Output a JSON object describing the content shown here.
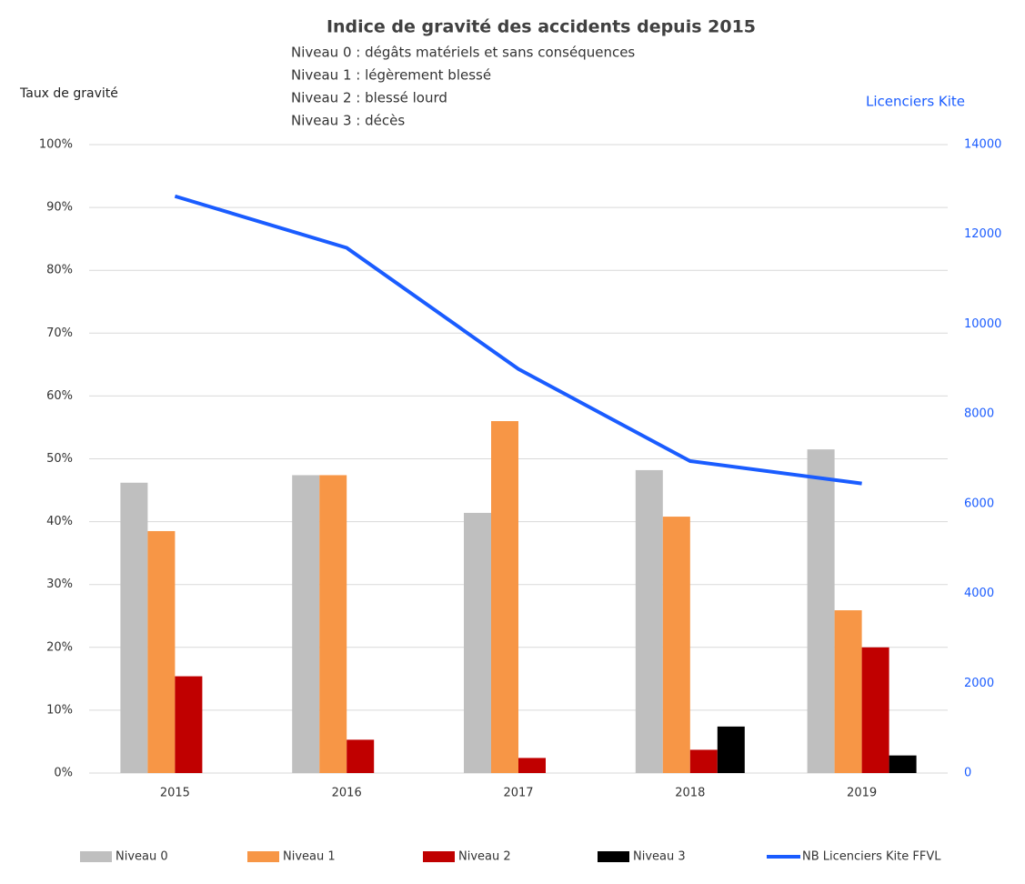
{
  "chart_data": {
    "type": "bar",
    "title": "Indice de gravité des accidents depuis 2015",
    "notes": [
      "Niveau 0 : dégâts matériels et sans conséquences",
      "Niveau 1 : légèrement blessé",
      "Niveau 2 : blessé lourd",
      "Niveau 3 : décès"
    ],
    "y_label": "Taux de gravité",
    "y2_label": "Licenciers Kite",
    "categories": [
      "2015",
      "2016",
      "2017",
      "2018",
      "2019"
    ],
    "series": [
      {
        "name": "Niveau 0",
        "color": "#bfbfbf",
        "values": [
          46.2,
          47.4,
          41.4,
          48.2,
          51.5
        ]
      },
      {
        "name": "Niveau 1",
        "color": "#f79646",
        "values": [
          38.5,
          47.4,
          56,
          40.8,
          25.9
        ]
      },
      {
        "name": "Niveau 2",
        "color": "#c00000",
        "values": [
          15.4,
          5.3,
          2.4,
          3.7,
          20
        ]
      },
      {
        "name": "Niveau 3",
        "color": "#000000",
        "values": [
          0,
          0,
          0,
          7.4,
          2.8
        ]
      },
      {
        "name": "NB Licenciers Kite FFVL",
        "color": "#1a5cff",
        "type": "line",
        "axis": "y2",
        "values": [
          12850,
          11700,
          9000,
          6950,
          6450
        ]
      }
    ],
    "ylim": [
      0,
      100
    ],
    "yticks": [
      {
        "value": 0,
        "label": "0%"
      },
      {
        "value": 10,
        "label": "10%"
      },
      {
        "value": 20,
        "label": "20%"
      },
      {
        "value": 30,
        "label": "30%"
      },
      {
        "value": 40,
        "label": "40%"
      },
      {
        "value": 50,
        "label": "50%"
      },
      {
        "value": 60,
        "label": "60%"
      },
      {
        "value": 70,
        "label": "70%"
      },
      {
        "value": 80,
        "label": "80%"
      },
      {
        "value": 90,
        "label": "90%"
      },
      {
        "value": 100,
        "label": "100%"
      }
    ],
    "y2lim": [
      0,
      14000
    ],
    "y2ticks": [
      0,
      2000,
      4000,
      6000,
      8000,
      10000,
      12000,
      14000
    ],
    "y2_color": "#1a5cff",
    "grid": true,
    "legend": "bottom"
  }
}
